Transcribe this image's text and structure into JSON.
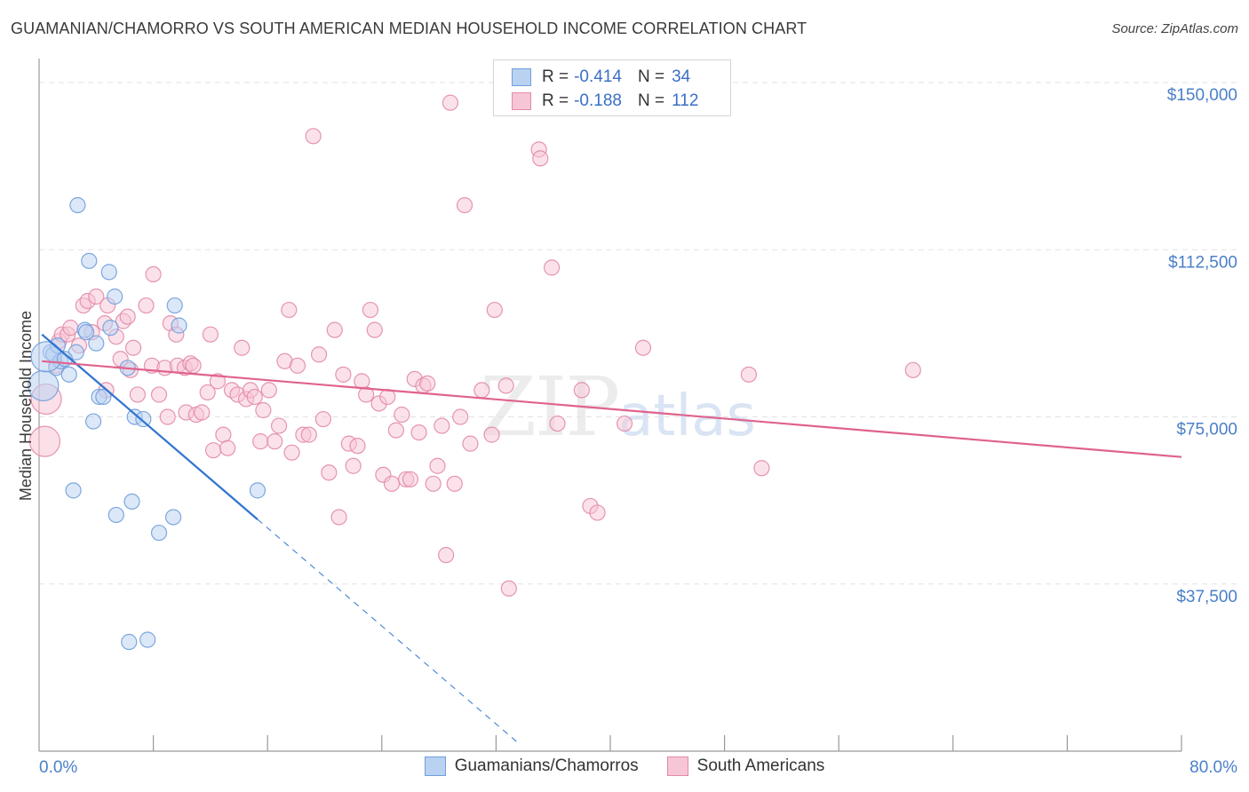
{
  "title": "GUAMANIAN/CHAMORRO VS SOUTH AMERICAN MEDIAN HOUSEHOLD INCOME CORRELATION CHART",
  "source": "Source: ZipAtlas.com",
  "watermark": {
    "zip": "ZIP",
    "atlas": "atlas"
  },
  "colors": {
    "blue_fill": "#b9d2f2",
    "blue_stroke": "#6f9fdc",
    "blue_line": "#2f74d0",
    "pink_fill": "#f7c6d6",
    "pink_stroke": "#e28aa8",
    "pink_line": "#e0628e",
    "axis_text": "#4a7fc9",
    "grid": "#e2e2e2"
  },
  "legend": {
    "rows": [
      {
        "r_label": "R =",
        "r_value": "-0.414",
        "n_label": "N =",
        "n_value": "34"
      },
      {
        "r_label": "R =",
        "r_value": "-0.188",
        "n_label": "N =",
        "n_value": "112"
      }
    ]
  },
  "bottom_legend": [
    "Guamanians/Chamorros",
    "South Americans"
  ],
  "chart_data": {
    "type": "scatter",
    "title": "GUAMANIAN/CHAMORRO VS SOUTH AMERICAN MEDIAN HOUSEHOLD INCOME CORRELATION CHART",
    "xlabel": "",
    "ylabel": "Median Household Income",
    "xlim": [
      0,
      80
    ],
    "ylim": [
      0,
      153000
    ],
    "x_tick_labels": [
      "0.0%",
      "80.0%"
    ],
    "y_ticks": [
      37500,
      75000,
      112500,
      150000
    ],
    "y_tick_labels": [
      "$37,500",
      "$75,000",
      "$112,500",
      "$150,000"
    ],
    "grid": true,
    "legend_position": "top-center",
    "series": [
      {
        "name": "Guamanians/Chamorros",
        "r": -0.414,
        "n": 34,
        "trend": {
          "x0": 0.2,
          "y0": 93500,
          "x1": 15.3,
          "y1": 52000,
          "dashed_to_x": 33.5
        },
        "points": [
          [
            0.3,
            82000
          ],
          [
            0.8,
            89500
          ],
          [
            1.0,
            89000
          ],
          [
            1.2,
            86000
          ],
          [
            1.3,
            91000
          ],
          [
            1.5,
            87500
          ],
          [
            2.1,
            84500
          ],
          [
            2.4,
            58500
          ],
          [
            2.6,
            89500
          ],
          [
            2.7,
            122500
          ],
          [
            3.2,
            94500
          ],
          [
            3.5,
            110000
          ],
          [
            3.8,
            74000
          ],
          [
            4.0,
            91500
          ],
          [
            4.2,
            79500
          ],
          [
            4.5,
            79500
          ],
          [
            4.9,
            107500
          ],
          [
            5.0,
            95000
          ],
          [
            5.3,
            102000
          ],
          [
            5.4,
            53000
          ],
          [
            6.2,
            86000
          ],
          [
            6.5,
            56000
          ],
          [
            6.7,
            75000
          ],
          [
            7.3,
            74500
          ],
          [
            6.3,
            24500
          ],
          [
            7.6,
            25000
          ],
          [
            8.4,
            49000
          ],
          [
            9.4,
            52500
          ],
          [
            9.5,
            100000
          ],
          [
            9.8,
            95500
          ],
          [
            15.3,
            58500
          ],
          [
            0.5,
            88500
          ],
          [
            1.8,
            88000
          ],
          [
            3.3,
            94000
          ]
        ]
      },
      {
        "name": "South Americans",
        "r": -0.188,
        "n": 112,
        "trend": {
          "x0": 0.2,
          "y0": 87500,
          "x1": 80,
          "y1": 66000
        },
        "points": [
          [
            0.4,
            69500
          ],
          [
            0.5,
            79000
          ],
          [
            1.2,
            86500
          ],
          [
            1.4,
            92000
          ],
          [
            1.6,
            93500
          ],
          [
            2.0,
            93500
          ],
          [
            2.2,
            95000
          ],
          [
            3.1,
            100000
          ],
          [
            3.4,
            101000
          ],
          [
            3.7,
            94000
          ],
          [
            4.0,
            102000
          ],
          [
            4.6,
            96000
          ],
          [
            4.7,
            81000
          ],
          [
            4.8,
            100000
          ],
          [
            5.4,
            93000
          ],
          [
            5.7,
            88000
          ],
          [
            5.9,
            96500
          ],
          [
            6.2,
            97500
          ],
          [
            6.4,
            85500
          ],
          [
            6.6,
            90500
          ],
          [
            6.9,
            80000
          ],
          [
            7.5,
            100000
          ],
          [
            7.9,
            86500
          ],
          [
            8.0,
            107000
          ],
          [
            8.4,
            80000
          ],
          [
            8.8,
            86000
          ],
          [
            9.0,
            75000
          ],
          [
            9.2,
            96000
          ],
          [
            9.6,
            93500
          ],
          [
            9.7,
            86500
          ],
          [
            10.2,
            86000
          ],
          [
            10.3,
            76000
          ],
          [
            10.6,
            87000
          ],
          [
            11.0,
            75500
          ],
          [
            11.4,
            76000
          ],
          [
            11.8,
            80500
          ],
          [
            12.0,
            93500
          ],
          [
            12.2,
            67500
          ],
          [
            12.5,
            83000
          ],
          [
            12.9,
            71000
          ],
          [
            13.2,
            68000
          ],
          [
            13.5,
            81000
          ],
          [
            13.9,
            80000
          ],
          [
            14.2,
            90500
          ],
          [
            14.5,
            79000
          ],
          [
            14.8,
            81000
          ],
          [
            15.1,
            79500
          ],
          [
            15.5,
            69500
          ],
          [
            15.7,
            76500
          ],
          [
            16.1,
            81000
          ],
          [
            16.5,
            69500
          ],
          [
            16.8,
            73000
          ],
          [
            17.2,
            87500
          ],
          [
            17.5,
            99000
          ],
          [
            17.7,
            67000
          ],
          [
            18.1,
            86500
          ],
          [
            18.5,
            71000
          ],
          [
            18.9,
            71000
          ],
          [
            19.2,
            138000
          ],
          [
            19.6,
            89000
          ],
          [
            19.9,
            74500
          ],
          [
            20.3,
            62500
          ],
          [
            20.7,
            94500
          ],
          [
            21.0,
            52500
          ],
          [
            21.3,
            84500
          ],
          [
            21.7,
            69000
          ],
          [
            22.0,
            64000
          ],
          [
            22.3,
            68500
          ],
          [
            22.6,
            83000
          ],
          [
            22.9,
            80000
          ],
          [
            23.2,
            99000
          ],
          [
            23.5,
            94500
          ],
          [
            23.8,
            78000
          ],
          [
            24.1,
            62000
          ],
          [
            24.4,
            79500
          ],
          [
            24.7,
            60000
          ],
          [
            25.0,
            72000
          ],
          [
            25.4,
            75500
          ],
          [
            25.7,
            61000
          ],
          [
            26.0,
            61000
          ],
          [
            26.3,
            83500
          ],
          [
            26.6,
            71500
          ],
          [
            26.9,
            82000
          ],
          [
            27.2,
            82500
          ],
          [
            27.6,
            60000
          ],
          [
            27.9,
            64000
          ],
          [
            28.2,
            73000
          ],
          [
            28.5,
            44000
          ],
          [
            28.8,
            145500
          ],
          [
            29.1,
            60000
          ],
          [
            29.5,
            75000
          ],
          [
            29.8,
            122500
          ],
          [
            30.2,
            69000
          ],
          [
            31.0,
            81000
          ],
          [
            31.7,
            71000
          ],
          [
            31.9,
            99000
          ],
          [
            32.7,
            82000
          ],
          [
            32.9,
            36500
          ],
          [
            35.0,
            135000
          ],
          [
            35.1,
            133000
          ],
          [
            35.9,
            108500
          ],
          [
            36.3,
            73500
          ],
          [
            38.0,
            81000
          ],
          [
            38.6,
            55000
          ],
          [
            39.1,
            53500
          ],
          [
            41.0,
            73500
          ],
          [
            42.3,
            90500
          ],
          [
            49.7,
            84500
          ],
          [
            50.6,
            63500
          ],
          [
            61.2,
            85500
          ],
          [
            2.8,
            91000
          ],
          [
            10.8,
            86500
          ]
        ]
      }
    ]
  }
}
